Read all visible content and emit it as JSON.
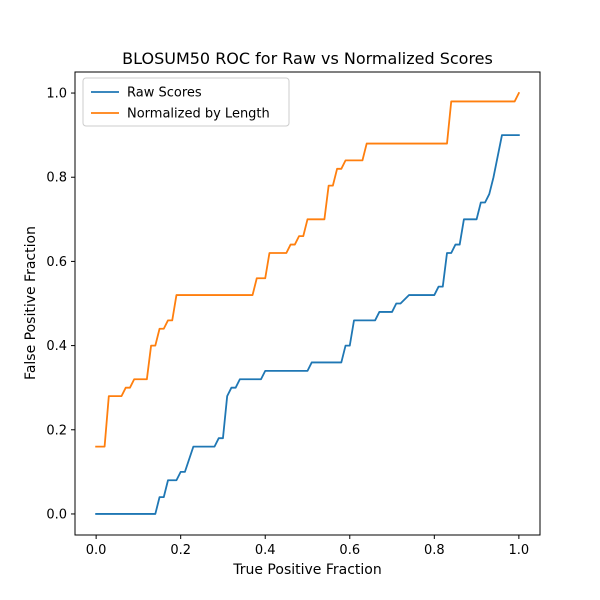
{
  "chart_data": {
    "type": "line",
    "title": "BLOSUM50 ROC for Raw vs Normalized Scores",
    "xlabel": "True Positive Fraction",
    "ylabel": "False Positive Fraction",
    "xlim": [
      -0.05,
      1.05
    ],
    "ylim": [
      -0.05,
      1.05
    ],
    "xticks": [
      0.0,
      0.2,
      0.4,
      0.6,
      0.8,
      1.0
    ],
    "yticks": [
      0.0,
      0.2,
      0.4,
      0.6,
      0.8,
      1.0
    ],
    "xtick_labels": [
      "0.0",
      "0.2",
      "0.4",
      "0.6",
      "0.8",
      "1.0"
    ],
    "ytick_labels": [
      "0.0",
      "0.2",
      "0.4",
      "0.6",
      "0.8",
      "1.0"
    ],
    "grid": false,
    "legend_position": "top-left",
    "series": [
      {
        "name": "Raw Scores",
        "color": "#1f77b4",
        "x": [
          0.0,
          0.14,
          0.15,
          0.16,
          0.17,
          0.19,
          0.2,
          0.21,
          0.23,
          0.25,
          0.28,
          0.29,
          0.3,
          0.31,
          0.32,
          0.33,
          0.34,
          0.35,
          0.39,
          0.4,
          0.5,
          0.51,
          0.53,
          0.55,
          0.58,
          0.59,
          0.6,
          0.61,
          0.64,
          0.66,
          0.67,
          0.7,
          0.71,
          0.72,
          0.74,
          0.8,
          0.81,
          0.82,
          0.83,
          0.84,
          0.85,
          0.86,
          0.87,
          0.89,
          0.9,
          0.91,
          0.92,
          0.93,
          0.94,
          0.96,
          1.0
        ],
        "y": [
          0.0,
          0.0,
          0.04,
          0.04,
          0.08,
          0.08,
          0.1,
          0.1,
          0.16,
          0.16,
          0.16,
          0.18,
          0.18,
          0.28,
          0.3,
          0.3,
          0.32,
          0.32,
          0.32,
          0.34,
          0.34,
          0.36,
          0.36,
          0.36,
          0.36,
          0.4,
          0.4,
          0.46,
          0.46,
          0.46,
          0.48,
          0.48,
          0.5,
          0.5,
          0.52,
          0.52,
          0.54,
          0.54,
          0.62,
          0.62,
          0.64,
          0.64,
          0.7,
          0.7,
          0.7,
          0.74,
          0.74,
          0.76,
          0.8,
          0.9,
          0.9
        ]
      },
      {
        "name": "Normalized by Length",
        "color": "#ff7f0e",
        "x": [
          0.0,
          0.02,
          0.03,
          0.05,
          0.06,
          0.07,
          0.08,
          0.09,
          0.12,
          0.13,
          0.14,
          0.15,
          0.16,
          0.17,
          0.18,
          0.19,
          0.2,
          0.22,
          0.37,
          0.38,
          0.4,
          0.41,
          0.45,
          0.46,
          0.47,
          0.48,
          0.49,
          0.5,
          0.51,
          0.54,
          0.55,
          0.56,
          0.57,
          0.58,
          0.59,
          0.6,
          0.63,
          0.64,
          0.83,
          0.84,
          0.99,
          1.0
        ],
        "y": [
          0.16,
          0.16,
          0.28,
          0.28,
          0.28,
          0.3,
          0.3,
          0.32,
          0.32,
          0.4,
          0.4,
          0.44,
          0.44,
          0.46,
          0.46,
          0.52,
          0.52,
          0.52,
          0.52,
          0.56,
          0.56,
          0.62,
          0.62,
          0.64,
          0.64,
          0.66,
          0.66,
          0.7,
          0.7,
          0.7,
          0.78,
          0.78,
          0.82,
          0.82,
          0.84,
          0.84,
          0.84,
          0.88,
          0.88,
          0.98,
          0.98,
          1.0
        ]
      }
    ]
  }
}
